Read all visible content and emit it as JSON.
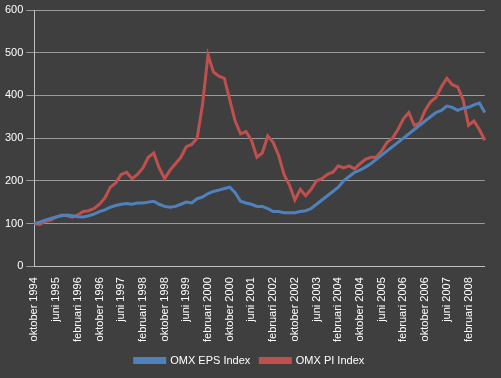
{
  "chart_data": {
    "type": "line",
    "categories": [
      "oktober 1994",
      null,
      null,
      null,
      "juni 1995",
      null,
      null,
      null,
      "februari 1996",
      null,
      null,
      null,
      "oktober 1996",
      null,
      null,
      null,
      "juni 1997",
      null,
      null,
      null,
      "februari 1998",
      null,
      null,
      null,
      "oktober 1998",
      null,
      null,
      null,
      "juni 1999",
      null,
      null,
      null,
      "februari 2000",
      null,
      null,
      null,
      "oktober 2000",
      null,
      null,
      null,
      "juni 2001",
      null,
      null,
      null,
      "februari 2002",
      null,
      null,
      null,
      "oktober 2002",
      null,
      null,
      null,
      "juni 2003",
      null,
      null,
      null,
      "februari 2004",
      null,
      null,
      null,
      "oktober 2004",
      null,
      null,
      null,
      "juni 2005",
      null,
      null,
      null,
      "februari 2006",
      null,
      null,
      null,
      "oktober 2006",
      null,
      null,
      null,
      "juni 2007",
      null,
      null,
      null,
      "februari 2008",
      null,
      null,
      null
    ],
    "series": [
      {
        "name": "OMX EPS Index",
        "color": "#4f81bd",
        "values": [
          100,
          103,
          108,
          112,
          115,
          118,
          120,
          118,
          116,
          115,
          118,
          122,
          128,
          132,
          138,
          142,
          145,
          147,
          145,
          148,
          148,
          150,
          152,
          145,
          140,
          138,
          140,
          145,
          150,
          148,
          158,
          162,
          170,
          175,
          178,
          182,
          185,
          172,
          152,
          148,
          145,
          140,
          140,
          135,
          128,
          128,
          125,
          125,
          125,
          128,
          130,
          135,
          145,
          155,
          165,
          175,
          185,
          200,
          210,
          220,
          225,
          232,
          240,
          250,
          260,
          270,
          280,
          290,
          300,
          310,
          320,
          330,
          340,
          350,
          360,
          365,
          375,
          372,
          365,
          370,
          372,
          378,
          382,
          360
        ]
      },
      {
        "name": "OMX PI Index",
        "color": "#c0504d",
        "values": [
          100,
          98,
          105,
          108,
          115,
          120,
          118,
          115,
          120,
          128,
          130,
          135,
          145,
          160,
          185,
          195,
          215,
          220,
          205,
          215,
          230,
          255,
          265,
          230,
          205,
          225,
          240,
          255,
          280,
          285,
          300,
          380,
          495,
          455,
          445,
          440,
          390,
          340,
          310,
          315,
          295,
          255,
          265,
          305,
          290,
          260,
          215,
          190,
          155,
          180,
          165,
          180,
          200,
          205,
          215,
          220,
          235,
          230,
          235,
          228,
          240,
          250,
          255,
          255,
          270,
          290,
          300,
          320,
          345,
          360,
          330,
          335,
          365,
          385,
          395,
          420,
          440,
          425,
          420,
          390,
          330,
          340,
          320,
          295
        ]
      }
    ],
    "ylim": [
      0,
      600
    ],
    "yticks": [
      0,
      100,
      200,
      300,
      400,
      500,
      600
    ],
    "grid": true,
    "legend": "bottom"
  }
}
